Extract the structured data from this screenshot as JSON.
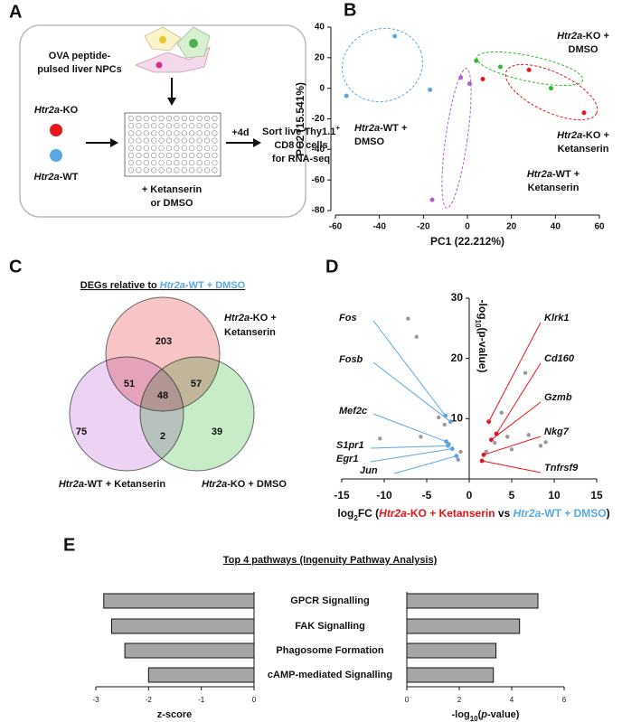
{
  "panel_labels": [
    "A",
    "B",
    "C",
    "D",
    "E"
  ],
  "diagram": {
    "npc": [
      "OVA peptide-",
      "pulsed liver NPCs"
    ],
    "ko": [
      "Htr2a",
      "-KO"
    ],
    "wt": [
      "Htr2a",
      "-WT"
    ],
    "drug": [
      "+ Ketanserin",
      "or DMSO"
    ],
    "time": "+4d",
    "sort": [
      "Sort live Thy1.1",
      "+",
      "CD8 T cells",
      "for RNA-seq"
    ]
  },
  "venn": {
    "title": [
      "DEGs relative to ",
      "Htr2a",
      "-WT + DMSO"
    ],
    "sets": [
      {
        "name": [
          "Htr2a",
          "-KO +",
          "Ketanserin"
        ],
        "color": "#f08c8c"
      },
      {
        "name": [
          "Htr2a",
          "-WT + Ketanserin"
        ],
        "color": "#d9a6e8"
      },
      {
        "name": [
          "Htr2a",
          "-KO + DMSO"
        ],
        "color": "#8fd98f"
      }
    ],
    "counts": [
      203,
      51,
      57,
      48,
      75,
      2,
      39
    ]
  },
  "chart_data": [
    {
      "type": "scatter",
      "xlabel": "PC1 (22.212%)",
      "ylabel": "PC2 (15.541%)",
      "xlim": [
        -60,
        60
      ],
      "xticks": [
        -60,
        -40,
        -20,
        0,
        20,
        40,
        60
      ],
      "ylim": [
        -80,
        40
      ],
      "yticks": [
        -80,
        -60,
        -40,
        -20,
        0,
        20,
        40
      ],
      "series": [
        {
          "name": [
            "Htr2a",
            "-WT +",
            "DMSO"
          ],
          "color": "#5aa7e6",
          "x": [
            -55,
            -33,
            -17
          ],
          "values": [
            -5,
            34,
            -1
          ]
        },
        {
          "name": [
            "Htr2a",
            "-KO +",
            "DMSO"
          ],
          "color": "#2db92d",
          "x": [
            4,
            15,
            38
          ],
          "values": [
            18,
            14,
            0
          ]
        },
        {
          "name": [
            "Htr2a",
            "-KO +",
            "Ketanserin"
          ],
          "color": "#e8151b",
          "x": [
            7,
            28,
            53
          ],
          "values": [
            6,
            12,
            -16
          ]
        },
        {
          "name": [
            "Htr2a",
            "-WT +",
            "Ketanserin"
          ],
          "color": "#b45cd8",
          "x": [
            -3,
            1,
            -16
          ],
          "values": [
            7,
            3,
            -73
          ]
        }
      ]
    },
    {
      "type": "volcano",
      "xlabel": [
        "log",
        "2",
        "FC (",
        "Htr2a",
        "-KO + Ketanserin",
        " vs ",
        "Htr2a",
        "-WT + DMSO",
        ")"
      ],
      "ylabel": [
        "-log",
        "10",
        "(p-value)"
      ],
      "xlim": [
        -15,
        15
      ],
      "xticks": [
        -15,
        -10,
        -5,
        0,
        5,
        10,
        15
      ],
      "ylim": [
        0,
        30
      ],
      "yticks": [
        10,
        20,
        30
      ],
      "series": [
        {
          "color": "#999999",
          "x": [
            -7.2,
            -6.2,
            -10.5,
            -5.7,
            -3.6,
            -2.9,
            -1,
            -1.3,
            -2.4,
            6.6,
            7,
            9,
            4.5,
            5,
            3,
            3.8,
            2,
            8.4
          ],
          "values": [
            26.6,
            23.6,
            6.7,
            7,
            10.2,
            9,
            4.5,
            3.2,
            5.8,
            17.6,
            7.3,
            6.1,
            7,
            4.9,
            6,
            11,
            4.5,
            5.5
          ]
        }
      ],
      "genes": [
        {
          "label": "Fos",
          "color": "#5aa7e6",
          "x": -2.8,
          "y": 10.5
        },
        {
          "label": "Fosb",
          "color": "#5aa7e6",
          "x": -2.2,
          "y": 9.5
        },
        {
          "label": "Mef2c",
          "color": "#5aa7e6",
          "x": -2.7,
          "y": 6.2
        },
        {
          "label": "S1pr1",
          "color": "#5aa7e6",
          "x": -2.5,
          "y": 5.5
        },
        {
          "label": "Egr1",
          "color": "#5aa7e6",
          "x": -2,
          "y": 5
        },
        {
          "label": "Jun",
          "color": "#5aa7e6",
          "x": -1.5,
          "y": 3.8
        },
        {
          "label": "Klrk1",
          "color": "#e8151b",
          "x": 2.3,
          "y": 9.5
        },
        {
          "label": "Cd160",
          "color": "#e8151b",
          "x": 3.2,
          "y": 7.5
        },
        {
          "label": "Gzmb",
          "color": "#e8151b",
          "x": 2.6,
          "y": 6.5
        },
        {
          "label": "Nkg7",
          "color": "#e8151b",
          "x": 1.7,
          "y": 4
        },
        {
          "label": "Tnfrsf9",
          "color": "#e8151b",
          "x": 1.5,
          "y": 3
        }
      ]
    },
    {
      "type": "barh",
      "title": "Top 4 pathways (Ingenuity Pathway Analysis)",
      "categories": [
        "GPCR Signalling",
        "FAK Signalling",
        "Phagosome Formation",
        "cAMP-mediated Signalling"
      ],
      "values": [
        -2.85,
        -2.7,
        -2.45,
        -2.0
      ],
      "color": "#a6a6a6",
      "xlim": [
        -3,
        0
      ],
      "xticks": [
        -3,
        -2,
        -1,
        0
      ],
      "xlabel": "z-score"
    },
    {
      "type": "barh",
      "values": [
        5.0,
        4.3,
        3.4,
        3.3
      ],
      "color": "#a6a6a6",
      "xlim": [
        0,
        6
      ],
      "xticks": [
        0,
        2,
        4,
        6
      ],
      "xlabel": [
        "-log",
        "10",
        "(",
        "p",
        "-value)"
      ]
    }
  ]
}
